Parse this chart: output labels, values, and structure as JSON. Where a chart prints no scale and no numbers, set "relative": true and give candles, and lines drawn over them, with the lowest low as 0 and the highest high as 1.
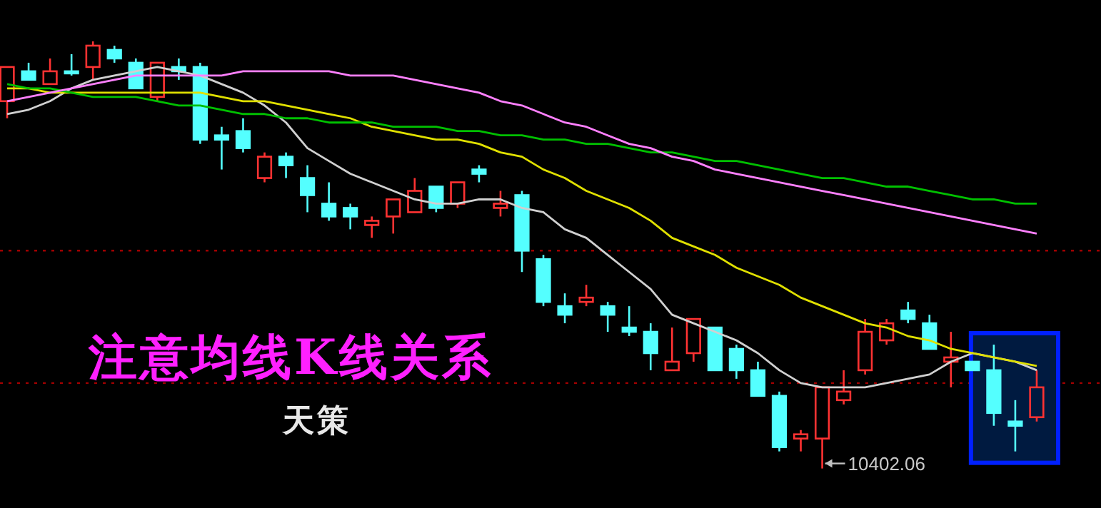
{
  "chart_data": {
    "type": "candlestick",
    "relative": true,
    "categories": [
      null,
      null,
      null,
      null,
      null,
      null,
      null,
      null,
      null,
      null,
      null,
      null,
      null,
      null,
      null,
      null,
      null,
      null,
      null,
      null,
      null,
      null,
      null,
      null,
      null,
      null,
      null,
      null,
      null,
      null,
      null,
      null,
      null,
      null,
      null,
      null,
      null,
      null,
      null,
      null,
      null,
      null,
      null,
      null,
      null,
      null,
      null,
      null,
      null
    ],
    "ohlc": [
      [
        0.86,
        0.94,
        0.82,
        0.94
      ],
      [
        0.93,
        0.95,
        0.91,
        0.91
      ],
      [
        0.9,
        0.96,
        0.9,
        0.93
      ],
      [
        0.93,
        0.97,
        0.92,
        0.93
      ],
      [
        0.94,
        1.0,
        0.91,
        0.99
      ],
      [
        0.98,
        0.99,
        0.95,
        0.96
      ],
      [
        0.95,
        0.96,
        0.89,
        0.89
      ],
      [
        0.87,
        0.95,
        0.86,
        0.95
      ],
      [
        0.94,
        0.96,
        0.91,
        0.93
      ],
      [
        0.94,
        0.95,
        0.76,
        0.77
      ],
      [
        0.78,
        0.8,
        0.7,
        0.77
      ],
      [
        0.79,
        0.82,
        0.74,
        0.75
      ],
      [
        0.68,
        0.74,
        0.67,
        0.73
      ],
      [
        0.73,
        0.74,
        0.68,
        0.71
      ],
      [
        0.68,
        0.71,
        0.6,
        0.64
      ],
      [
        0.62,
        0.67,
        0.58,
        0.59
      ],
      [
        0.61,
        0.62,
        0.56,
        0.59
      ],
      [
        0.57,
        0.59,
        0.54,
        0.58
      ],
      [
        0.59,
        0.63,
        0.55,
        0.63
      ],
      [
        0.6,
        0.68,
        0.6,
        0.65
      ],
      [
        0.66,
        0.66,
        0.6,
        0.61
      ],
      [
        0.62,
        0.67,
        0.61,
        0.67
      ],
      [
        0.7,
        0.71,
        0.67,
        0.69
      ],
      [
        0.61,
        0.65,
        0.59,
        0.62
      ],
      [
        0.64,
        0.65,
        0.46,
        0.51
      ],
      [
        0.49,
        0.5,
        0.38,
        0.39
      ],
      [
        0.38,
        0.41,
        0.34,
        0.36
      ],
      [
        0.39,
        0.43,
        0.38,
        0.4
      ],
      [
        0.38,
        0.39,
        0.32,
        0.36
      ],
      [
        0.33,
        0.38,
        0.31,
        0.32
      ],
      [
        0.32,
        0.34,
        0.23,
        0.27
      ],
      [
        0.23,
        0.33,
        0.23,
        0.25
      ],
      [
        0.27,
        0.35,
        0.25,
        0.35
      ],
      [
        0.33,
        0.33,
        0.23,
        0.23
      ],
      [
        0.28,
        0.29,
        0.21,
        0.23
      ],
      [
        0.23,
        0.25,
        0.17,
        0.17
      ],
      [
        0.17,
        0.18,
        0.04,
        0.05
      ],
      [
        0.07,
        0.09,
        0.04,
        0.08
      ],
      [
        0.07,
        0.19,
        0,
        0.19
      ],
      [
        0.16,
        0.23,
        0.15,
        0.18
      ],
      [
        0.23,
        0.35,
        0.22,
        0.32
      ],
      [
        0.3,
        0.35,
        0.29,
        0.34
      ],
      [
        0.37,
        0.39,
        0.34,
        0.35
      ],
      [
        0.34,
        0.36,
        0.28,
        0.28
      ],
      [
        0.25,
        0.32,
        0.19,
        0.26
      ],
      [
        0.25,
        0.25,
        0.23,
        0.23
      ],
      [
        0.23,
        0.29,
        0.1,
        0.13
      ],
      [
        0.11,
        0.16,
        0.04,
        0.1
      ],
      [
        0.12,
        0.23,
        0.11,
        0.19
      ]
    ],
    "colors": [
      "#ff3232",
      "#54ffff",
      "#ff3232",
      "#54ffff",
      "#ff3232",
      "#54ffff",
      "#54ffff",
      "#ff3232",
      "#54ffff",
      "#54ffff",
      "#54ffff",
      "#54ffff",
      "#ff3232",
      "#54ffff",
      "#54ffff",
      "#54ffff",
      "#54ffff",
      "#ff3232",
      "#ff3232",
      "#ff3232",
      "#54ffff",
      "#ff3232",
      "#54ffff",
      "#ff3232",
      "#54ffff",
      "#54ffff",
      "#54ffff",
      "#ff3232",
      "#54ffff",
      "#54ffff",
      "#54ffff",
      "#ff3232",
      "#ff3232",
      "#54ffff",
      "#54ffff",
      "#54ffff",
      "#54ffff",
      "#ff3232",
      "#ff3232",
      "#ff3232",
      "#ff3232",
      "#ff3232",
      "#54ffff",
      "#54ffff",
      "#ff3232",
      "#54ffff",
      "#54ffff",
      "#54ffff",
      "#ff3232"
    ],
    "series": [
      {
        "type": "line",
        "color": "#d0d0d0",
        "values": [
          0.83,
          0.84,
          0.86,
          0.89,
          0.91,
          0.92,
          0.93,
          0.94,
          0.93,
          0.92,
          0.9,
          0.88,
          0.85,
          0.81,
          0.75,
          0.72,
          0.69,
          0.67,
          0.65,
          0.63,
          0.62,
          0.62,
          0.63,
          0.63,
          0.61,
          0.6,
          0.56,
          0.54,
          0.5,
          0.46,
          0.42,
          0.36,
          0.34,
          0.32,
          0.3,
          0.27,
          0.23,
          0.2,
          0.19,
          0.19,
          0.19,
          0.2,
          0.21,
          0.22,
          0.25,
          0.27,
          0.26,
          0.25,
          0.23
        ]
      },
      {
        "type": "line",
        "color": "#e0e000",
        "values": [
          0.89,
          0.89,
          0.88,
          0.88,
          0.88,
          0.88,
          0.88,
          0.88,
          0.88,
          0.88,
          0.87,
          0.86,
          0.86,
          0.85,
          0.84,
          0.83,
          0.82,
          0.8,
          0.79,
          0.78,
          0.77,
          0.77,
          0.76,
          0.74,
          0.73,
          0.7,
          0.68,
          0.65,
          0.63,
          0.61,
          0.58,
          0.54,
          0.52,
          0.5,
          0.47,
          0.45,
          0.43,
          0.4,
          0.38,
          0.36,
          0.34,
          0.33,
          0.31,
          0.3,
          0.28,
          0.27,
          0.26,
          0.25,
          0.24
        ]
      },
      {
        "type": "line",
        "color": "#00c000",
        "values": [
          0.9,
          0.89,
          0.89,
          0.88,
          0.87,
          0.87,
          0.87,
          0.86,
          0.85,
          0.85,
          0.84,
          0.83,
          0.83,
          0.82,
          0.82,
          0.81,
          0.81,
          0.81,
          0.8,
          0.8,
          0.8,
          0.79,
          0.79,
          0.78,
          0.78,
          0.77,
          0.77,
          0.76,
          0.76,
          0.75,
          0.74,
          0.74,
          0.73,
          0.72,
          0.72,
          0.71,
          0.7,
          0.69,
          0.68,
          0.68,
          0.67,
          0.66,
          0.66,
          0.65,
          0.64,
          0.63,
          0.63,
          0.62,
          0.62
        ]
      },
      {
        "type": "line",
        "color": "#ff80ff",
        "values": [
          0.86,
          0.87,
          0.88,
          0.89,
          0.9,
          0.91,
          0.92,
          0.92,
          0.92,
          0.92,
          0.92,
          0.93,
          0.93,
          0.93,
          0.93,
          0.93,
          0.92,
          0.92,
          0.92,
          0.91,
          0.9,
          0.89,
          0.88,
          0.86,
          0.85,
          0.83,
          0.81,
          0.8,
          0.78,
          0.76,
          0.75,
          0.73,
          0.72,
          0.7,
          0.69,
          0.68,
          0.67,
          0.66,
          0.65,
          0.64,
          0.63,
          0.62,
          0.61,
          0.6,
          0.59,
          0.58,
          0.57,
          0.56,
          0.55
        ]
      }
    ],
    "ref_lines": [
      {
        "axis": "y",
        "value": 0.51,
        "color": "#a00000",
        "line_style": "dotted"
      },
      {
        "axis": "y",
        "value": 0.2,
        "color": "#a00000",
        "line_style": "dotted"
      }
    ],
    "annotations": [
      "注意均线K线关系",
      "天策",
      "10402.06"
    ]
  }
}
